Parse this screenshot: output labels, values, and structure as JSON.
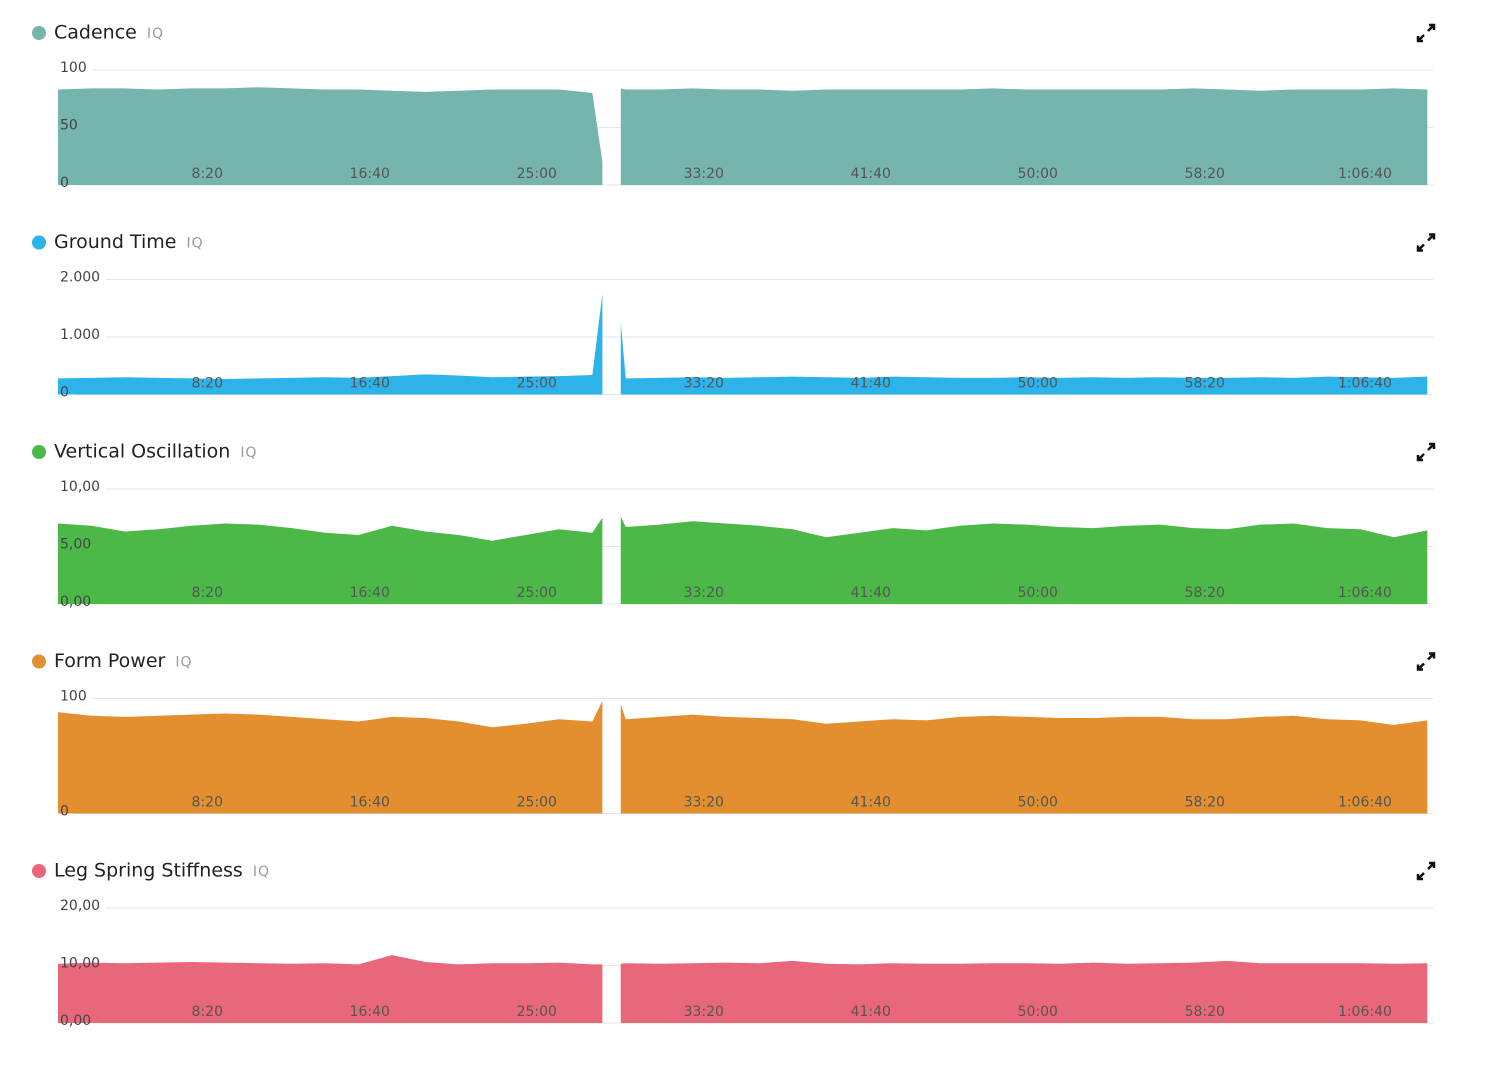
{
  "chart_data": [
    {
      "type": "area",
      "title": "Cadence",
      "badge": "IQ",
      "color": "#76b5ad",
      "x": [
        0,
        100,
        200,
        300,
        400,
        500,
        600,
        700,
        800,
        900,
        1000,
        1100,
        1200,
        1300,
        1400,
        1500,
        1600,
        1630,
        1650,
        1685,
        1700,
        1800,
        1900,
        2000,
        2100,
        2200,
        2300,
        2400,
        2500,
        2600,
        2700,
        2800,
        2900,
        3000,
        3100,
        3200,
        3300,
        3400,
        3500,
        3600,
        3700,
        3800,
        3900,
        4000,
        4100
      ],
      "values": [
        83,
        84,
        84,
        83,
        84,
        84,
        85,
        84,
        83,
        83,
        82,
        81,
        82,
        83,
        83,
        83,
        80,
        20,
        null,
        84,
        83,
        83,
        84,
        83,
        83,
        82,
        83,
        83,
        83,
        83,
        83,
        84,
        83,
        83,
        83,
        83,
        83,
        84,
        83,
        82,
        83,
        83,
        83,
        84,
        83
      ],
      "xlim": [
        0,
        4117
      ],
      "xticks": [
        {
          "value": 500,
          "label": "8:20"
        },
        {
          "value": 1000,
          "label": "16:40"
        },
        {
          "value": 1500,
          "label": "25:00"
        },
        {
          "value": 2000,
          "label": "33:20"
        },
        {
          "value": 2500,
          "label": "41:40"
        },
        {
          "value": 3000,
          "label": "50:00"
        },
        {
          "value": 3500,
          "label": "58:20"
        },
        {
          "value": 4000,
          "label": "1:06:40"
        }
      ],
      "ylim": [
        0,
        100
      ],
      "yticks": [
        0,
        50,
        100
      ],
      "grid": true
    },
    {
      "type": "area",
      "title": "Ground Time",
      "badge": "IQ",
      "color": "#2bb3ea",
      "x": [
        0,
        100,
        200,
        300,
        400,
        500,
        600,
        700,
        800,
        900,
        1000,
        1100,
        1200,
        1300,
        1400,
        1500,
        1600,
        1630,
        1650,
        1685,
        1700,
        1800,
        1900,
        2000,
        2100,
        2200,
        2300,
        2400,
        2500,
        2600,
        2700,
        2800,
        2900,
        3000,
        3100,
        3200,
        3300,
        3400,
        3500,
        3600,
        3700,
        3800,
        3900,
        4000,
        4100
      ],
      "values": [
        280,
        290,
        300,
        290,
        280,
        270,
        280,
        290,
        300,
        290,
        320,
        350,
        330,
        300,
        310,
        320,
        340,
        1750,
        null,
        1250,
        280,
        290,
        300,
        290,
        300,
        310,
        300,
        290,
        310,
        300,
        290,
        290,
        300,
        290,
        300,
        290,
        300,
        290,
        290,
        300,
        290,
        310,
        300,
        290,
        310
      ],
      "xlim": [
        0,
        4117
      ],
      "xticks": [
        {
          "value": 500,
          "label": "8:20"
        },
        {
          "value": 1000,
          "label": "16:40"
        },
        {
          "value": 1500,
          "label": "25:00"
        },
        {
          "value": 2000,
          "label": "33:20"
        },
        {
          "value": 2500,
          "label": "41:40"
        },
        {
          "value": 3000,
          "label": "50:00"
        },
        {
          "value": 3500,
          "label": "58:20"
        },
        {
          "value": 4000,
          "label": "1:06:40"
        }
      ],
      "ylim": [
        0,
        2000
      ],
      "yticks": [
        0,
        {
          "value": 1000,
          "label": "1.000"
        },
        {
          "value": 2000,
          "label": "2.000"
        }
      ],
      "grid": true
    },
    {
      "type": "area",
      "title": "Vertical Oscillation",
      "badge": "IQ",
      "color": "#4cb848",
      "x": [
        0,
        100,
        200,
        300,
        400,
        500,
        600,
        700,
        800,
        900,
        1000,
        1100,
        1200,
        1300,
        1400,
        1500,
        1600,
        1630,
        1650,
        1685,
        1700,
        1800,
        1900,
        2000,
        2100,
        2200,
        2300,
        2400,
        2500,
        2600,
        2700,
        2800,
        2900,
        3000,
        3100,
        3200,
        3300,
        3400,
        3500,
        3600,
        3700,
        3800,
        3900,
        4000,
        4100
      ],
      "values": [
        7.0,
        6.8,
        6.3,
        6.5,
        6.8,
        7.0,
        6.9,
        6.6,
        6.2,
        6.0,
        6.8,
        6.3,
        6.0,
        5.5,
        6.0,
        6.5,
        6.2,
        7.5,
        null,
        7.6,
        6.7,
        6.9,
        7.2,
        7.0,
        6.8,
        6.5,
        5.8,
        6.2,
        6.6,
        6.4,
        6.8,
        7.0,
        6.9,
        6.7,
        6.6,
        6.8,
        6.9,
        6.6,
        6.5,
        6.9,
        7.0,
        6.6,
        6.5,
        5.8,
        6.4
      ],
      "xlim": [
        0,
        4117
      ],
      "xticks": [
        {
          "value": 500,
          "label": "8:20"
        },
        {
          "value": 1000,
          "label": "16:40"
        },
        {
          "value": 1500,
          "label": "25:00"
        },
        {
          "value": 2000,
          "label": "33:20"
        },
        {
          "value": 2500,
          "label": "41:40"
        },
        {
          "value": 3000,
          "label": "50:00"
        },
        {
          "value": 3500,
          "label": "58:20"
        },
        {
          "value": 4000,
          "label": "1:06:40"
        }
      ],
      "ylim": [
        0,
        10
      ],
      "yticks": [
        {
          "value": 0,
          "label": "0,00"
        },
        {
          "value": 5,
          "label": "5,00"
        },
        {
          "value": 10,
          "label": "10,00"
        }
      ],
      "grid": true
    },
    {
      "type": "area",
      "title": "Form Power",
      "badge": "IQ",
      "color": "#e38f2f",
      "x": [
        0,
        100,
        200,
        300,
        400,
        500,
        600,
        700,
        800,
        900,
        1000,
        1100,
        1200,
        1300,
        1400,
        1500,
        1600,
        1630,
        1650,
        1685,
        1700,
        1800,
        1900,
        2000,
        2100,
        2200,
        2300,
        2400,
        2500,
        2600,
        2700,
        2800,
        2900,
        3000,
        3100,
        3200,
        3300,
        3400,
        3500,
        3600,
        3700,
        3800,
        3900,
        4000,
        4100
      ],
      "values": [
        88,
        85,
        84,
        85,
        86,
        87,
        86,
        84,
        82,
        80,
        84,
        83,
        80,
        75,
        78,
        82,
        80,
        98,
        null,
        95,
        82,
        84,
        86,
        84,
        83,
        82,
        78,
        80,
        82,
        81,
        84,
        85,
        84,
        83,
        83,
        84,
        84,
        82,
        82,
        84,
        85,
        82,
        81,
        77,
        81
      ],
      "xlim": [
        0,
        4117
      ],
      "xticks": [
        {
          "value": 500,
          "label": "8:20"
        },
        {
          "value": 1000,
          "label": "16:40"
        },
        {
          "value": 1500,
          "label": "25:00"
        },
        {
          "value": 2000,
          "label": "33:20"
        },
        {
          "value": 2500,
          "label": "41:40"
        },
        {
          "value": 3000,
          "label": "50:00"
        },
        {
          "value": 3500,
          "label": "58:20"
        },
        {
          "value": 4000,
          "label": "1:06:40"
        }
      ],
      "ylim": [
        0,
        100
      ],
      "yticks": [
        0,
        100
      ],
      "grid": true
    },
    {
      "type": "area",
      "title": "Leg Spring Stiffness",
      "badge": "IQ",
      "color": "#e9677a",
      "x": [
        0,
        100,
        200,
        300,
        400,
        500,
        600,
        700,
        800,
        900,
        1000,
        1100,
        1200,
        1300,
        1400,
        1500,
        1600,
        1630,
        1650,
        1685,
        1700,
        1800,
        1900,
        2000,
        2100,
        2200,
        2300,
        2400,
        2500,
        2600,
        2700,
        2800,
        2900,
        3000,
        3100,
        3200,
        3300,
        3400,
        3500,
        3600,
        3700,
        3800,
        3900,
        4000,
        4100
      ],
      "values": [
        10.3,
        10.5,
        10.4,
        10.5,
        10.6,
        10.5,
        10.4,
        10.3,
        10.4,
        10.2,
        11.8,
        10.6,
        10.2,
        10.4,
        10.4,
        10.5,
        10.2,
        10.2,
        null,
        10.3,
        10.4,
        10.3,
        10.4,
        10.5,
        10.4,
        10.8,
        10.3,
        10.2,
        10.4,
        10.3,
        10.3,
        10.4,
        10.4,
        10.3,
        10.5,
        10.3,
        10.4,
        10.5,
        10.8,
        10.4,
        10.4,
        10.4,
        10.4,
        10.3,
        10.4
      ],
      "xlim": [
        0,
        4117
      ],
      "xticks": [
        {
          "value": 500,
          "label": "8:20"
        },
        {
          "value": 1000,
          "label": "16:40"
        },
        {
          "value": 1500,
          "label": "25:00"
        },
        {
          "value": 2000,
          "label": "33:20"
        },
        {
          "value": 2500,
          "label": "41:40"
        },
        {
          "value": 3000,
          "label": "50:00"
        },
        {
          "value": 3500,
          "label": "58:20"
        },
        {
          "value": 4000,
          "label": "1:06:40"
        }
      ],
      "ylim": [
        0,
        20
      ],
      "yticks": [
        {
          "value": 0,
          "label": "0,00"
        },
        {
          "value": 10,
          "label": "10,00"
        },
        {
          "value": 20,
          "label": "20,00"
        }
      ],
      "grid": true
    }
  ]
}
